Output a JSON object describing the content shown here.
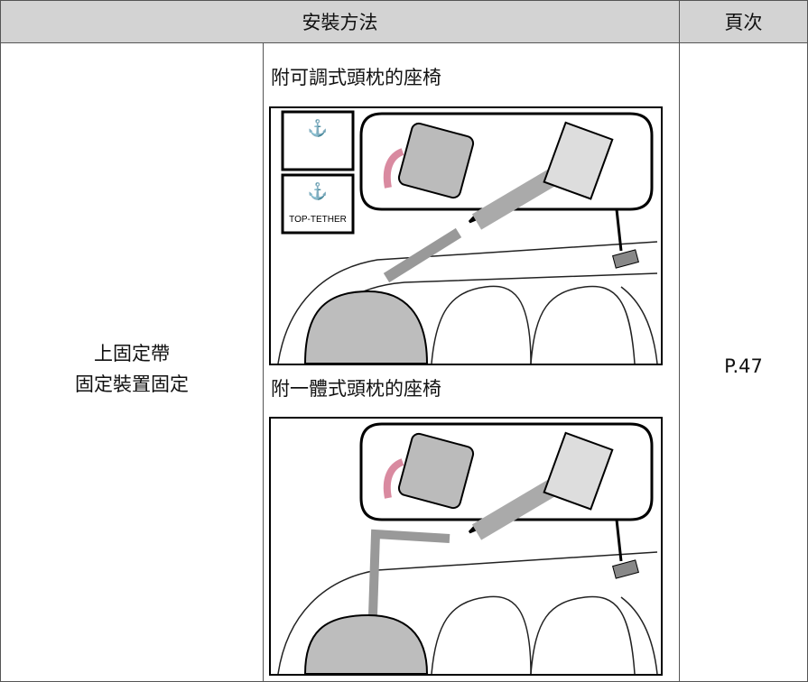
{
  "table": {
    "header": [
      "安裝方法",
      "頁次"
    ],
    "rows": [
      {
        "method": [
          "上固定帶",
          "固定裝置固定"
        ],
        "variants": [
          {
            "caption": "附可調式頭枕的座椅",
            "icon_label": "TOP-TETHER"
          },
          {
            "caption": "附一體式頭枕的座椅"
          }
        ],
        "page": "P.47"
      }
    ]
  }
}
